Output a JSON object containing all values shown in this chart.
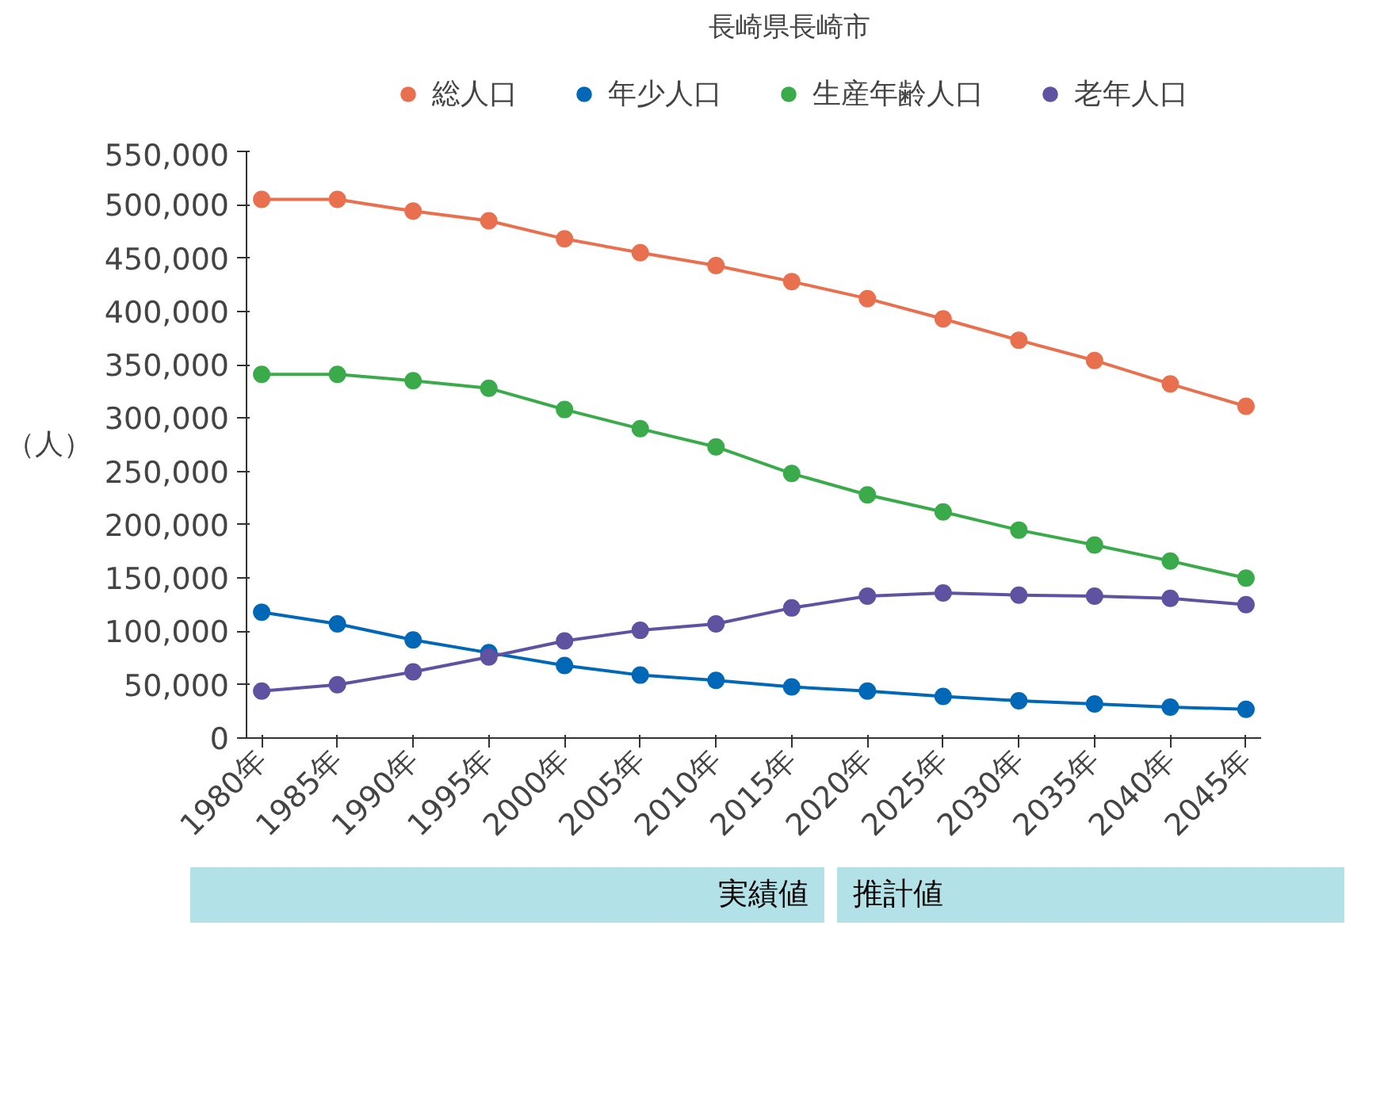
{
  "chart_data": {
    "type": "line",
    "title": "長崎県長崎市",
    "ylabel": "（人）",
    "categories": [
      "1980年",
      "1985年",
      "1990年",
      "1995年",
      "2000年",
      "2005年",
      "2010年",
      "2015年",
      "2020年",
      "2025年",
      "2030年",
      "2035年",
      "2040年",
      "2045年"
    ],
    "series": [
      {
        "name": "総人口",
        "color": "#e8704f",
        "values": [
          505000,
          505000,
          494000,
          485000,
          468000,
          455000,
          443000,
          428000,
          412000,
          393000,
          373000,
          354000,
          332000,
          311000
        ]
      },
      {
        "name": "年少人口",
        "color": "#0068b7",
        "values": [
          118000,
          107000,
          92000,
          80000,
          68000,
          59000,
          54000,
          48000,
          44000,
          39000,
          35000,
          32000,
          29000,
          27000
        ]
      },
      {
        "name": "生産年齢人口",
        "color": "#3aaa4a",
        "values": [
          341000,
          341000,
          335000,
          328000,
          308000,
          290000,
          273000,
          248000,
          228000,
          212000,
          195000,
          181000,
          166000,
          150000
        ]
      },
      {
        "name": "老年人口",
        "color": "#5f52a0",
        "values": [
          44000,
          50000,
          62000,
          76000,
          91000,
          101000,
          107000,
          122000,
          133000,
          136000,
          134000,
          133000,
          131000,
          125000
        ]
      }
    ],
    "ylim": [
      0,
      550000
    ],
    "yticks": [
      0,
      {
        "value": 50000,
        "label": "50,000"
      },
      {
        "value": 100000,
        "label": "100,000"
      },
      {
        "value": 150000,
        "label": "150,000"
      },
      {
        "value": 200000,
        "label": "200,000"
      },
      {
        "value": 250000,
        "label": "250,000"
      },
      {
        "value": 300000,
        "label": "300,000"
      },
      {
        "value": 350000,
        "label": "350,000"
      },
      {
        "value": 400000,
        "label": "400,000"
      },
      {
        "value": 450000,
        "label": "450,000"
      },
      {
        "value": 500000,
        "label": "500,000"
      },
      {
        "value": 550000,
        "label": "550,000"
      }
    ],
    "grid": false,
    "legend": "top",
    "marker": "circle",
    "line_style": "solid",
    "annotations": [
      "実績値",
      "推計値"
    ]
  }
}
